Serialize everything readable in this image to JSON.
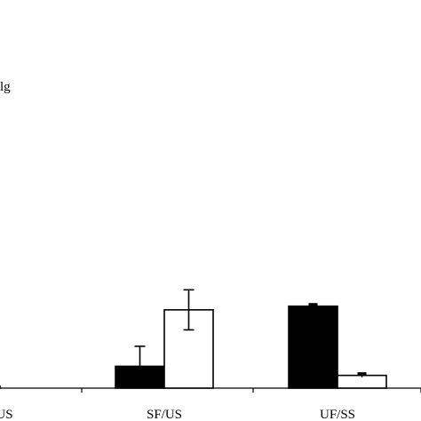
{
  "chart_data": {
    "type": "bar",
    "categories": [
      "US",
      "SF/US",
      "UF/SS"
    ],
    "series": [
      {
        "fill": "#000000",
        "values": [
          0.5,
          6,
          22.5
        ],
        "errors": [
          0,
          5.5,
          0.5
        ]
      },
      {
        "fill": "#ffffff",
        "values": [
          0,
          21.5,
          3.5
        ],
        "errors": [
          0,
          5.5,
          0.5
        ]
      }
    ],
    "ylim": [
      0,
      100
    ],
    "grid": false,
    "legend": "none",
    "annotation": "lg"
  }
}
